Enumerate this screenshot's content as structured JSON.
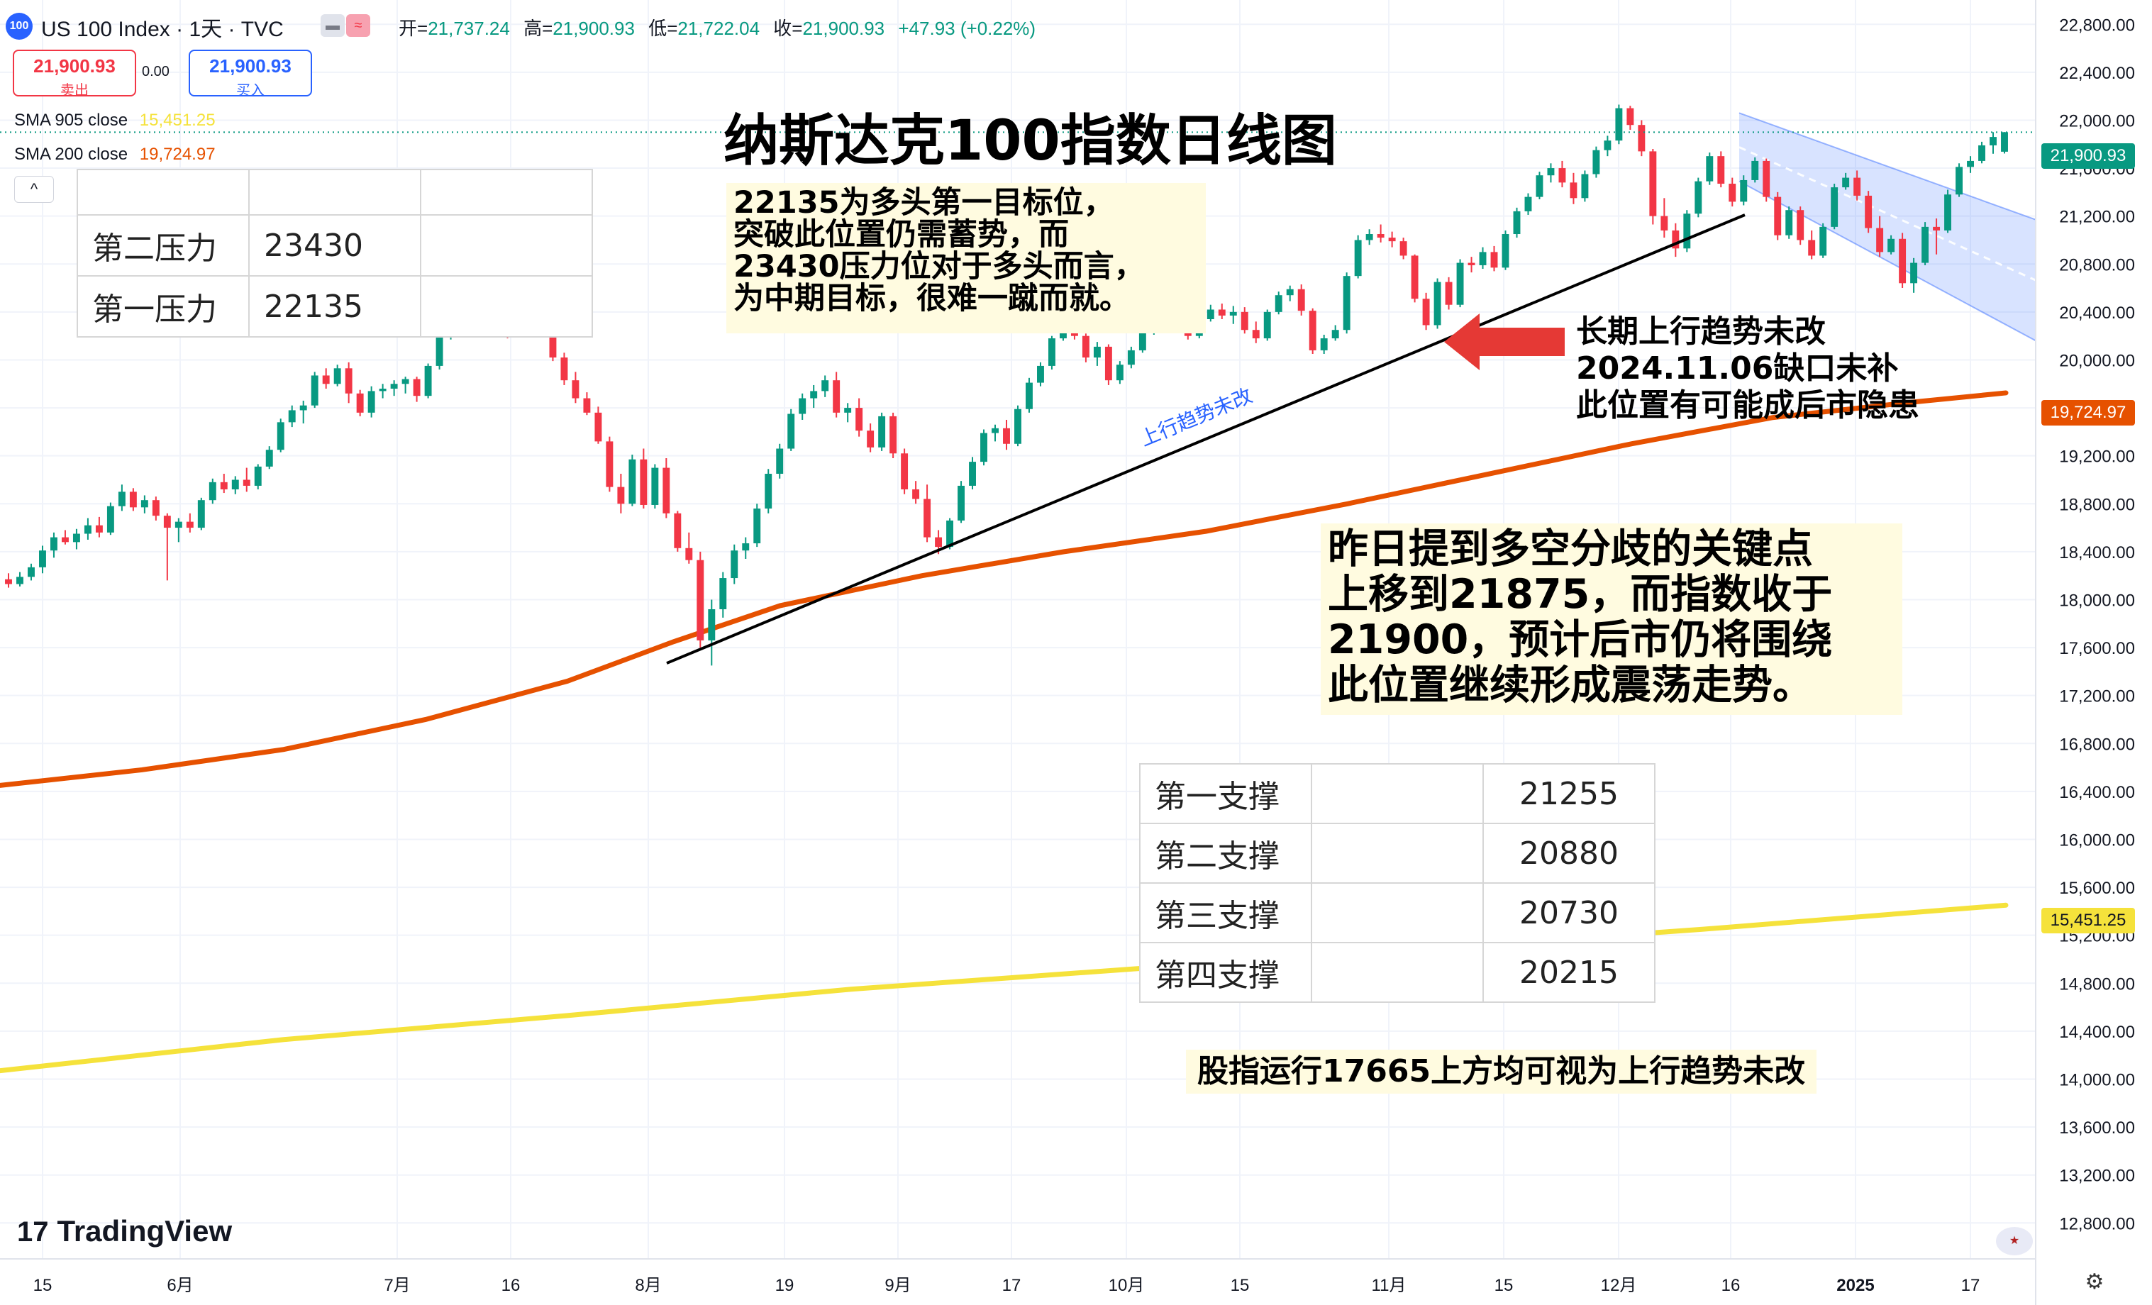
{
  "header": {
    "symbol_badge": "100",
    "symbol": "US 100 Index · 1天 · TVC",
    "open_label": "开=",
    "open": "21,737.24",
    "high_label": "高=",
    "high": "21,900.93",
    "low_label": "低=",
    "low": "21,722.04",
    "close_label": "收=",
    "close": "21,900.93",
    "change": "+47.93 (+0.22%)"
  },
  "trade": {
    "sell_price": "21,900.93",
    "sell_label": "卖出",
    "spread": "0.00",
    "buy_price": "21,900.93",
    "buy_label": "买入"
  },
  "indicators": {
    "sma905_label": "SMA 905 close",
    "sma905_value": "15,451.25",
    "sma200_label": "SMA 200 close",
    "sma200_value": "19,724.97"
  },
  "annotations": {
    "title": "纳斯达克100指数日线图",
    "note1": [
      "22135为多头第一目标位，",
      "突破此位置仍需蓄势，而",
      "23430压力位对于多头而言，",
      "为中期目标，很难一蹴而就。"
    ],
    "note2": [
      "长期上行趋势未改",
      "2024.11.06缺口未补",
      "此位置有可能成后市隐患"
    ],
    "note3": [
      "昨日提到多空分歧的关键点",
      "上移到21875，而指数收于",
      "21900，预计后市仍将围绕",
      "此位置继续形成震荡走势。"
    ],
    "note4": "股指运行17665上方均可视为上行趋势未改",
    "trendline_label": "上行趋势未改"
  },
  "resistance_table": [
    {
      "label": "第二压力",
      "value": "23430"
    },
    {
      "label": "第一压力",
      "value": "22135"
    }
  ],
  "support_table": [
    {
      "label": "第一支撑",
      "value": "21255"
    },
    {
      "label": "第二支撑",
      "value": "20880"
    },
    {
      "label": "第三支撑",
      "value": "20730"
    },
    {
      "label": "第四支撑",
      "value": "20215"
    }
  ],
  "price_tags": {
    "last": "21,900.93",
    "sma200": "19,724.97",
    "sma905": "15,451.25"
  },
  "branding": {
    "logo": "TradingView",
    "logo_mark": "17"
  },
  "colors": {
    "up": "#089981",
    "down": "#f23645",
    "sma200": "#e65100",
    "sma905": "#f5e23b",
    "channel": "#2962ff",
    "arrow": "#e53935"
  },
  "chart_data": {
    "type": "candlestick",
    "y_ticks": [
      12800,
      13200,
      13600,
      14000,
      14400,
      14800,
      15200,
      15600,
      16000,
      16400,
      16800,
      17200,
      17600,
      18000,
      18400,
      18800,
      19200,
      19600,
      20000,
      20400,
      20800,
      21200,
      21600,
      22000,
      22400,
      22800
    ],
    "ylim": [
      12500,
      23050
    ],
    "x_ticks": [
      "15",
      "6月",
      "7月",
      "16",
      "8月",
      "19",
      "9月",
      "17",
      "10月",
      "15",
      "11月",
      "15",
      "12月",
      "16",
      "2025",
      "17"
    ],
    "grid": true,
    "candles": [
      [
        18170,
        18220,
        18100,
        18130
      ],
      [
        18130,
        18230,
        18110,
        18190
      ],
      [
        18190,
        18300,
        18160,
        18270
      ],
      [
        18270,
        18450,
        18220,
        18410
      ],
      [
        18410,
        18560,
        18350,
        18520
      ],
      [
        18520,
        18580,
        18460,
        18480
      ],
      [
        18480,
        18590,
        18420,
        18550
      ],
      [
        18550,
        18680,
        18500,
        18620
      ],
      [
        18620,
        18690,
        18520,
        18560
      ],
      [
        18560,
        18810,
        18540,
        18780
      ],
      [
        18780,
        18960,
        18740,
        18900
      ],
      [
        18900,
        18930,
        18740,
        18770
      ],
      [
        18770,
        18870,
        18720,
        18830
      ],
      [
        18830,
        18860,
        18660,
        18700
      ],
      [
        18700,
        18720,
        18160,
        18600
      ],
      [
        18600,
        18680,
        18480,
        18650
      ],
      [
        18650,
        18720,
        18560,
        18600
      ],
      [
        18600,
        18850,
        18580,
        18830
      ],
      [
        18830,
        19010,
        18800,
        18980
      ],
      [
        18980,
        19050,
        18890,
        18920
      ],
      [
        18920,
        19030,
        18880,
        19000
      ],
      [
        19000,
        19100,
        18900,
        18950
      ],
      [
        18950,
        19130,
        18920,
        19110
      ],
      [
        19110,
        19280,
        19090,
        19250
      ],
      [
        19250,
        19510,
        19230,
        19480
      ],
      [
        19480,
        19620,
        19440,
        19580
      ],
      [
        19580,
        19660,
        19470,
        19620
      ],
      [
        19620,
        19900,
        19600,
        19870
      ],
      [
        19870,
        19930,
        19760,
        19800
      ],
      [
        19800,
        19960,
        19780,
        19930
      ],
      [
        19930,
        19980,
        19640,
        19720
      ],
      [
        19720,
        19750,
        19530,
        19560
      ],
      [
        19560,
        19780,
        19520,
        19740
      ],
      [
        19740,
        19800,
        19680,
        19760
      ],
      [
        19760,
        19830,
        19700,
        19800
      ],
      [
        19800,
        19860,
        19720,
        19840
      ],
      [
        19840,
        19860,
        19650,
        19700
      ],
      [
        19700,
        19970,
        19680,
        19950
      ],
      [
        19950,
        20230,
        19920,
        20200
      ],
      [
        20200,
        20310,
        20170,
        20280
      ],
      [
        20280,
        20420,
        20240,
        20390
      ],
      [
        20390,
        20480,
        20340,
        20460
      ],
      [
        20460,
        20640,
        20440,
        20610
      ],
      [
        20610,
        20680,
        20390,
        20430
      ],
      [
        20430,
        20480,
        20180,
        20220
      ],
      [
        20220,
        20500,
        20200,
        20480
      ],
      [
        20480,
        20560,
        20420,
        20520
      ],
      [
        20520,
        20530,
        20330,
        20370
      ],
      [
        20370,
        20390,
        19990,
        20020
      ],
      [
        20020,
        20060,
        19790,
        19830
      ],
      [
        19830,
        19900,
        19640,
        19680
      ],
      [
        19680,
        19730,
        19540,
        19560
      ],
      [
        19560,
        19610,
        19300,
        19320
      ],
      [
        19320,
        19360,
        18900,
        18940
      ],
      [
        18940,
        19050,
        18720,
        18800
      ],
      [
        18800,
        19210,
        18780,
        19170
      ],
      [
        19170,
        19260,
        18760,
        18790
      ],
      [
        18790,
        19130,
        18760,
        19100
      ],
      [
        19100,
        19180,
        18680,
        18720
      ],
      [
        18720,
        18740,
        18400,
        18430
      ],
      [
        18430,
        18560,
        18300,
        18330
      ],
      [
        18330,
        18400,
        17600,
        17660
      ],
      [
        17660,
        18000,
        17450,
        17920
      ],
      [
        17920,
        18230,
        17850,
        18180
      ],
      [
        18180,
        18460,
        18130,
        18410
      ],
      [
        18410,
        18520,
        18340,
        18470
      ],
      [
        18470,
        18800,
        18440,
        18760
      ],
      [
        18760,
        19090,
        18720,
        19050
      ],
      [
        19050,
        19300,
        19010,
        19260
      ],
      [
        19260,
        19590,
        19240,
        19550
      ],
      [
        19550,
        19720,
        19500,
        19680
      ],
      [
        19680,
        19790,
        19600,
        19740
      ],
      [
        19740,
        19870,
        19690,
        19830
      ],
      [
        19830,
        19900,
        19520,
        19560
      ],
      [
        19560,
        19640,
        19480,
        19600
      ],
      [
        19600,
        19680,
        19360,
        19410
      ],
      [
        19410,
        19470,
        19230,
        19270
      ],
      [
        19270,
        19560,
        19240,
        19530
      ],
      [
        19530,
        19560,
        19180,
        19220
      ],
      [
        19220,
        19260,
        18880,
        18920
      ],
      [
        18920,
        18990,
        18800,
        18840
      ],
      [
        18840,
        18960,
        18480,
        18520
      ],
      [
        18520,
        18580,
        18380,
        18440
      ],
      [
        18440,
        18680,
        18420,
        18660
      ],
      [
        18660,
        18990,
        18640,
        18950
      ],
      [
        18950,
        19190,
        18920,
        19150
      ],
      [
        19150,
        19420,
        19120,
        19390
      ],
      [
        19390,
        19460,
        19320,
        19430
      ],
      [
        19430,
        19500,
        19250,
        19300
      ],
      [
        19300,
        19620,
        19280,
        19590
      ],
      [
        19590,
        19850,
        19560,
        19810
      ],
      [
        19810,
        19980,
        19780,
        19950
      ],
      [
        19950,
        20200,
        19920,
        20180
      ],
      [
        20180,
        20340,
        20160,
        20290
      ],
      [
        20290,
        20330,
        20170,
        20200
      ],
      [
        20200,
        20220,
        19980,
        20020
      ],
      [
        20020,
        20150,
        19950,
        20110
      ],
      [
        20110,
        20130,
        19790,
        19830
      ],
      [
        19830,
        19990,
        19800,
        19960
      ],
      [
        19960,
        20110,
        19930,
        20080
      ],
      [
        20080,
        20250,
        20060,
        20230
      ],
      [
        20230,
        20360,
        20210,
        20320
      ],
      [
        20320,
        20380,
        20260,
        20300
      ],
      [
        20300,
        20470,
        20280,
        20440
      ],
      [
        20440,
        20490,
        20170,
        20200
      ],
      [
        20200,
        20380,
        20180,
        20340
      ],
      [
        20340,
        20460,
        20320,
        20420
      ],
      [
        20420,
        20470,
        20340,
        20370
      ],
      [
        20370,
        20450,
        20300,
        20400
      ],
      [
        20400,
        20440,
        20220,
        20250
      ],
      [
        20250,
        20320,
        20140,
        20180
      ],
      [
        20180,
        20420,
        20160,
        20400
      ],
      [
        20400,
        20570,
        20380,
        20540
      ],
      [
        20540,
        20620,
        20490,
        20590
      ],
      [
        20590,
        20630,
        20370,
        20410
      ],
      [
        20410,
        20430,
        20050,
        20080
      ],
      [
        20080,
        20210,
        20050,
        20180
      ],
      [
        20180,
        20290,
        20160,
        20250
      ],
      [
        20250,
        20730,
        20220,
        20700
      ],
      [
        20700,
        21040,
        20680,
        21000
      ],
      [
        21000,
        21090,
        20960,
        21050
      ],
      [
        21050,
        21130,
        20980,
        21020
      ],
      [
        21020,
        21070,
        20940,
        20990
      ],
      [
        20990,
        21020,
        20840,
        20870
      ],
      [
        20870,
        20880,
        20480,
        20510
      ],
      [
        20510,
        20560,
        20250,
        20290
      ],
      [
        20290,
        20680,
        20260,
        20650
      ],
      [
        20650,
        20690,
        20420,
        20460
      ],
      [
        20460,
        20840,
        20440,
        20810
      ],
      [
        20810,
        20860,
        20730,
        20790
      ],
      [
        20790,
        20940,
        20760,
        20900
      ],
      [
        20900,
        20950,
        20740,
        20770
      ],
      [
        20770,
        21080,
        20750,
        21050
      ],
      [
        21050,
        21270,
        21020,
        21240
      ],
      [
        21240,
        21390,
        21210,
        21360
      ],
      [
        21360,
        21570,
        21340,
        21540
      ],
      [
        21540,
        21640,
        21480,
        21600
      ],
      [
        21600,
        21660,
        21440,
        21480
      ],
      [
        21480,
        21560,
        21300,
        21350
      ],
      [
        21350,
        21580,
        21320,
        21550
      ],
      [
        21550,
        21780,
        21520,
        21750
      ],
      [
        21750,
        21870,
        21700,
        21830
      ],
      [
        21830,
        22130,
        21800,
        22100
      ],
      [
        22100,
        22120,
        21920,
        21960
      ],
      [
        21960,
        22000,
        21700,
        21740
      ],
      [
        21740,
        21760,
        21130,
        21200
      ],
      [
        21200,
        21350,
        21020,
        21080
      ],
      [
        21080,
        21140,
        20860,
        20930
      ],
      [
        20930,
        21250,
        20900,
        21220
      ],
      [
        21220,
        21520,
        21190,
        21490
      ],
      [
        21490,
        21730,
        21460,
        21700
      ],
      [
        21700,
        21740,
        21440,
        21470
      ],
      [
        21470,
        21520,
        21280,
        21320
      ],
      [
        21320,
        21540,
        21290,
        21500
      ],
      [
        21500,
        21690,
        21480,
        21660
      ],
      [
        21660,
        21680,
        21320,
        21360
      ],
      [
        21360,
        21400,
        21000,
        21040
      ],
      [
        21040,
        21280,
        21010,
        21250
      ],
      [
        21250,
        21280,
        20960,
        21000
      ],
      [
        21000,
        21080,
        20840,
        20870
      ],
      [
        20870,
        21140,
        20850,
        21110
      ],
      [
        21110,
        21470,
        21090,
        21440
      ],
      [
        21440,
        21560,
        21420,
        21520
      ],
      [
        21520,
        21580,
        21330,
        21370
      ],
      [
        21370,
        21410,
        21060,
        21100
      ],
      [
        21100,
        21200,
        20860,
        20900
      ],
      [
        20900,
        21040,
        20880,
        21010
      ],
      [
        21010,
        21060,
        20600,
        20640
      ],
      [
        20640,
        20850,
        20560,
        20810
      ],
      [
        20810,
        21150,
        20790,
        21110
      ],
      [
        21110,
        21180,
        20880,
        21080
      ],
      [
        21080,
        21420,
        21060,
        21380
      ],
      [
        21380,
        21640,
        21360,
        21610
      ],
      [
        21610,
        21700,
        21560,
        21660
      ],
      [
        21660,
        21820,
        21640,
        21790
      ],
      [
        21790,
        21900,
        21720,
        21860
      ],
      [
        21737,
        21901,
        21722,
        21900
      ]
    ],
    "sma200": [
      [
        0,
        16450
      ],
      [
        200,
        16580
      ],
      [
        400,
        16750
      ],
      [
        600,
        17000
      ],
      [
        800,
        17320
      ],
      [
        950,
        17650
      ],
      [
        1100,
        17950
      ],
      [
        1300,
        18200
      ],
      [
        1500,
        18400
      ],
      [
        1700,
        18570
      ],
      [
        1900,
        18800
      ],
      [
        2100,
        19050
      ],
      [
        2300,
        19300
      ],
      [
        2500,
        19520
      ],
      [
        2700,
        19650
      ],
      [
        2828,
        19725
      ]
    ],
    "sma905": [
      [
        0,
        14070
      ],
      [
        400,
        14330
      ],
      [
        800,
        14530
      ],
      [
        1200,
        14750
      ],
      [
        1600,
        14920
      ],
      [
        2000,
        15080
      ],
      [
        2400,
        15250
      ],
      [
        2828,
        15451
      ]
    ],
    "trendline": [
      [
        940,
        17470
      ],
      [
        2460,
        21210
      ]
    ],
    "channel_upper": [
      [
        2452,
        22060
      ],
      [
        2870,
        21170
      ]
    ],
    "channel_lower": [
      [
        2452,
        21490
      ],
      [
        2870,
        20160
      ]
    ]
  }
}
